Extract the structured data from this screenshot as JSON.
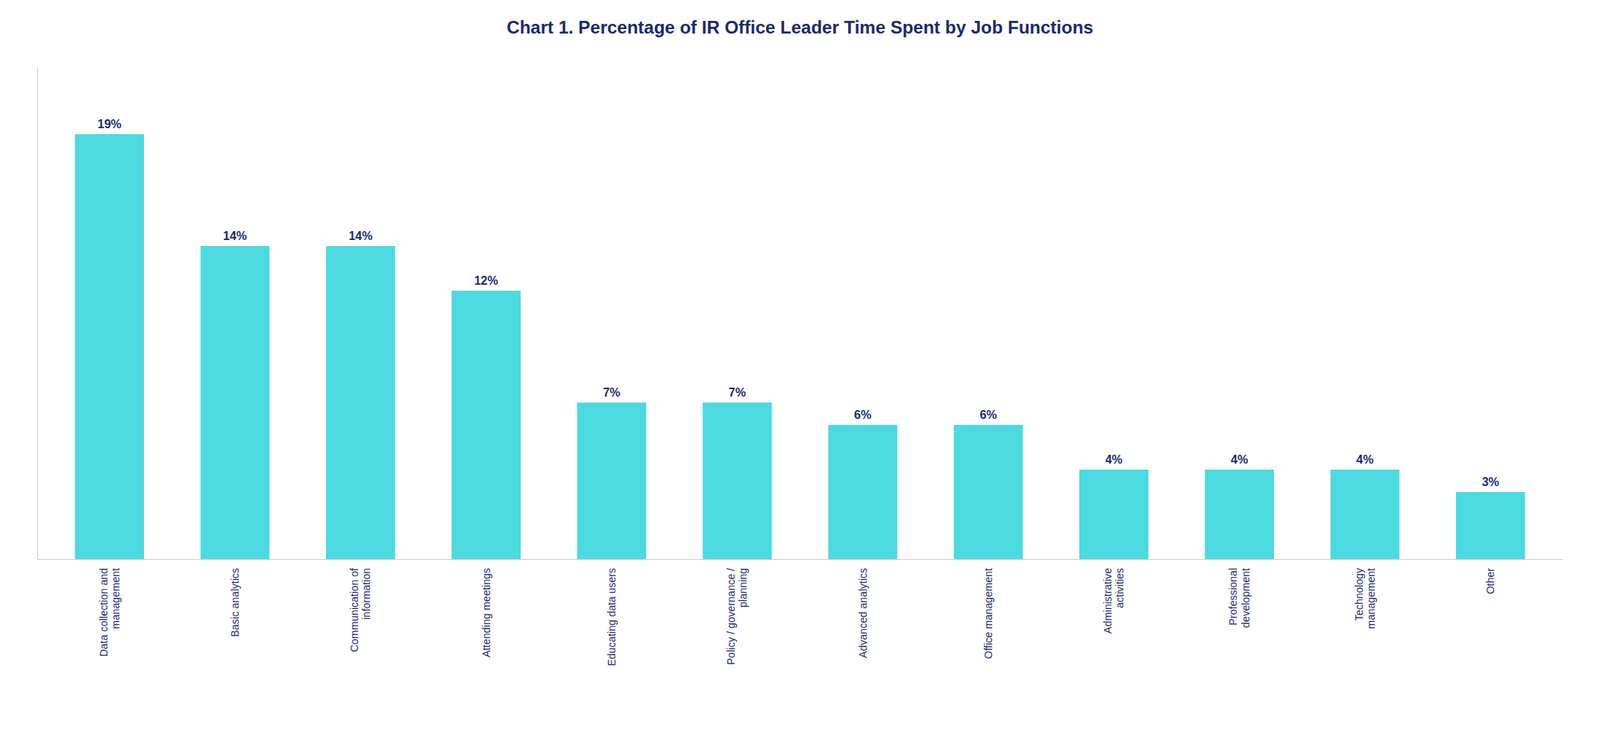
{
  "chart_data": {
    "type": "bar",
    "title": "Chart 1. Percentage of IR Office Leader Time Spent by Job Functions",
    "categories": [
      "Data collection and\nmanagement",
      "Basic analytics",
      "Communication of\ninformation",
      "Attending meetings",
      "Educating data users",
      "Policy / governance /\nplanning",
      "Advanced analytics",
      "Office management",
      "Administrative\nactivities",
      "Professional\ndevelopment",
      "Technology\nmanagement",
      "Other"
    ],
    "values": [
      19,
      14,
      14,
      12,
      7,
      7,
      6,
      6,
      4,
      4,
      4,
      3
    ],
    "value_labels": [
      "19%",
      "14%",
      "14%",
      "12%",
      "7%",
      "7%",
      "6%",
      "6%",
      "4%",
      "4%",
      "4%",
      "3%"
    ],
    "color": "#4DD9E0",
    "ylim": [
      0,
      22
    ],
    "grid": false,
    "data_labels": true,
    "tick_labels": "x"
  }
}
